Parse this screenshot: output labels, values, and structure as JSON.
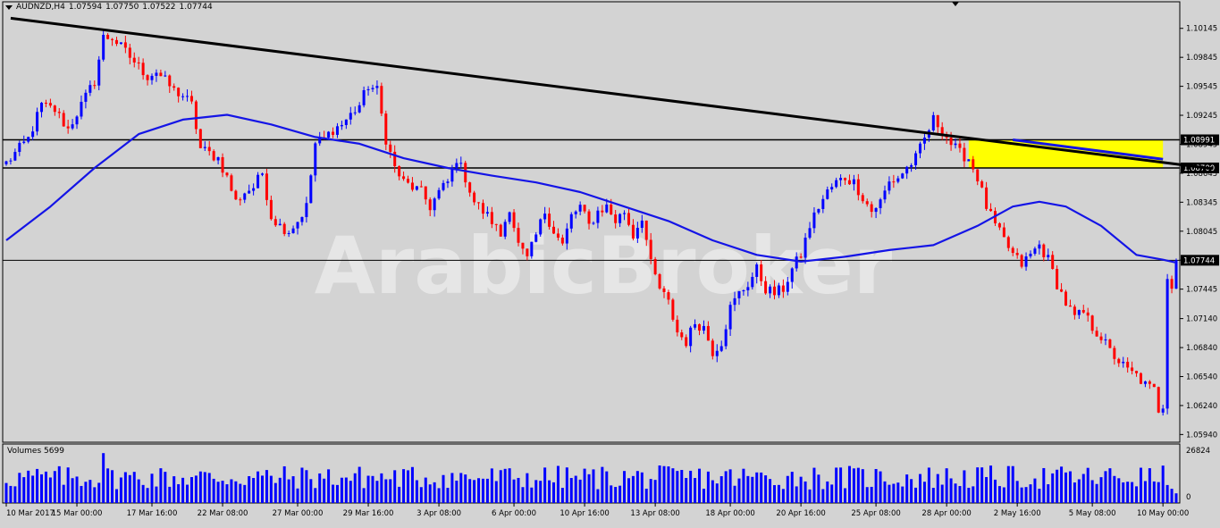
{
  "window": {
    "symbol_label": "AUDNZD,H4",
    "ohlc": [
      "1.07594",
      "1.07750",
      "1.07522",
      "1.07744"
    ]
  },
  "watermark": "ArabicBroker",
  "volumes": {
    "label": "Volumes 5699",
    "max_label": "26824",
    "min_label": "0"
  },
  "colors": {
    "background": "#d3d3d3",
    "bull_candle": "#0000ff",
    "bear_candle": "#ff0000",
    "moving_average": "#1414e6",
    "trendline": "#000000",
    "zone": "#ffff00",
    "volume_bar": "#0000ff"
  },
  "chart_data": {
    "type": "candlestick",
    "symbol": "AUDNZD",
    "timeframe": "H4",
    "ylim": [
      1.0586,
      1.1042
    ],
    "y_ticks": [
      "1.10145",
      "1.09845",
      "1.09545",
      "1.09245",
      "1.08945",
      "1.08645",
      "1.08345",
      "1.08045",
      "1.07745",
      "1.07445",
      "1.07140",
      "1.06840",
      "1.06540",
      "1.06240",
      "1.05940"
    ],
    "x_ticks": [
      "10 Mar 2017",
      "15 Mar 00:00",
      "17 Mar 16:00",
      "22 Mar 08:00",
      "27 Mar 00:00",
      "29 Mar 16:00",
      "3 Apr 08:00",
      "6 Apr 00:00",
      "10 Apr 16:00",
      "13 Apr 08:00",
      "18 Apr 00:00",
      "20 Apr 16:00",
      "25 Apr 08:00",
      "28 Apr 00:00",
      "2 May 16:00",
      "5 May 08:00",
      "10 May 00:00"
    ],
    "price_levels": [
      {
        "label": "1.08991",
        "value": 1.08991
      },
      {
        "label": "1.08700",
        "value": 1.087
      },
      {
        "label": "1.07744",
        "value": 1.07744
      }
    ],
    "trendline": {
      "from": [
        1,
        1.1025
      ],
      "to": [
        262,
        1.0873
      ]
    },
    "zone": {
      "from_index": 218,
      "to_index": 262,
      "top": 1.08991,
      "bottom": 1.087
    },
    "close_anchors": [
      [
        0,
        1.0875
      ],
      [
        2,
        1.0885
      ],
      [
        5,
        1.09
      ],
      [
        8,
        1.0935
      ],
      [
        11,
        1.093
      ],
      [
        14,
        1.091
      ],
      [
        17,
        1.0935
      ],
      [
        20,
        1.096
      ],
      [
        22,
        1.1005
      ],
      [
        24,
        1.1005
      ],
      [
        26,
        1.0995
      ],
      [
        28,
        1.0985
      ],
      [
        30,
        1.0975
      ],
      [
        32,
        1.0965
      ],
      [
        34,
        1.097
      ],
      [
        36,
        1.096
      ],
      [
        38,
        1.095
      ],
      [
        40,
        1.0945
      ],
      [
        42,
        1.0935
      ],
      [
        44,
        1.089
      ],
      [
        46,
        1.0885
      ],
      [
        48,
        1.088
      ],
      [
        50,
        1.086
      ],
      [
        52,
        1.0835
      ],
      [
        54,
        1.0845
      ],
      [
        56,
        1.085
      ],
      [
        58,
        1.0865
      ],
      [
        60,
        1.082
      ],
      [
        62,
        1.081
      ],
      [
        64,
        1.0805
      ],
      [
        66,
        1.0815
      ],
      [
        68,
        1.083
      ],
      [
        70,
        1.0895
      ],
      [
        72,
        1.09
      ],
      [
        74,
        1.091
      ],
      [
        76,
        1.0915
      ],
      [
        78,
        1.0925
      ],
      [
        80,
        1.0935
      ],
      [
        82,
        1.0955
      ],
      [
        84,
        1.095
      ],
      [
        86,
        1.09
      ],
      [
        88,
        1.087
      ],
      [
        90,
        1.0855
      ],
      [
        92,
        1.085
      ],
      [
        94,
        1.0845
      ],
      [
        96,
        1.083
      ],
      [
        98,
        1.0845
      ],
      [
        100,
        1.0855
      ],
      [
        102,
        1.088
      ],
      [
        104,
        1.086
      ],
      [
        106,
        1.0835
      ],
      [
        108,
        1.0825
      ],
      [
        110,
        1.0815
      ],
      [
        112,
        1.08
      ],
      [
        114,
        1.083
      ],
      [
        116,
        1.079
      ],
      [
        118,
        1.0775
      ],
      [
        120,
        1.08
      ],
      [
        122,
        1.0825
      ],
      [
        124,
        1.0805
      ],
      [
        126,
        1.079
      ],
      [
        128,
        1.082
      ],
      [
        130,
        1.083
      ],
      [
        132,
        1.081
      ],
      [
        134,
        1.0825
      ],
      [
        136,
        1.083
      ],
      [
        138,
        1.0815
      ],
      [
        140,
        1.0825
      ],
      [
        142,
        1.08
      ],
      [
        144,
        1.082
      ],
      [
        146,
        1.077
      ],
      [
        148,
        1.0745
      ],
      [
        150,
        1.073
      ],
      [
        152,
        1.07
      ],
      [
        154,
        1.069
      ],
      [
        156,
        1.071
      ],
      [
        158,
        1.0705
      ],
      [
        160,
        1.068
      ],
      [
        162,
        1.069
      ],
      [
        164,
        1.0725
      ],
      [
        166,
        1.074
      ],
      [
        168,
        1.075
      ],
      [
        170,
        1.0765
      ],
      [
        172,
        1.0745
      ],
      [
        174,
        1.074
      ],
      [
        176,
        1.0745
      ],
      [
        178,
        1.0765
      ],
      [
        180,
        1.078
      ],
      [
        182,
        1.081
      ],
      [
        184,
        1.083
      ],
      [
        186,
        1.0845
      ],
      [
        188,
        1.0855
      ],
      [
        190,
        1.086
      ],
      [
        192,
        1.0855
      ],
      [
        194,
        1.084
      ],
      [
        196,
        1.0825
      ],
      [
        198,
        1.0835
      ],
      [
        200,
        1.0855
      ],
      [
        202,
        1.086
      ],
      [
        204,
        1.087
      ],
      [
        206,
        1.088
      ],
      [
        208,
        1.09
      ],
      [
        210,
        1.092
      ],
      [
        212,
        1.091
      ],
      [
        214,
        1.0895
      ],
      [
        216,
        1.0885
      ],
      [
        218,
        1.088
      ],
      [
        220,
        1.086
      ],
      [
        222,
        1.083
      ],
      [
        224,
        1.081
      ],
      [
        226,
        1.0795
      ],
      [
        228,
        1.078
      ],
      [
        230,
        1.077
      ],
      [
        232,
        1.078
      ],
      [
        234,
        1.079
      ],
      [
        236,
        1.0775
      ],
      [
        238,
        1.075
      ],
      [
        240,
        1.073
      ],
      [
        242,
        1.0715
      ],
      [
        244,
        1.072
      ],
      [
        246,
        1.0705
      ],
      [
        248,
        1.0695
      ],
      [
        250,
        1.068
      ],
      [
        252,
        1.067
      ],
      [
        254,
        1.066
      ],
      [
        256,
        1.0655
      ],
      [
        258,
        1.0645
      ],
      [
        260,
        1.064
      ],
      [
        261,
        1.062
      ],
      [
        262,
        1.0625
      ],
      [
        263,
        1.0755
      ],
      [
        264,
        1.0745
      ],
      [
        265,
        1.07744
      ]
    ],
    "ma_points": [
      [
        0,
        1.0795
      ],
      [
        10,
        1.083
      ],
      [
        20,
        1.087
      ],
      [
        30,
        1.0905
      ],
      [
        40,
        1.092
      ],
      [
        50,
        1.0925
      ],
      [
        60,
        1.0915
      ],
      [
        70,
        1.0902
      ],
      [
        80,
        1.0895
      ],
      [
        90,
        1.088
      ],
      [
        100,
        1.087
      ],
      [
        110,
        1.0862
      ],
      [
        120,
        1.0855
      ],
      [
        130,
        1.0845
      ],
      [
        140,
        1.083
      ],
      [
        150,
        1.0815
      ],
      [
        160,
        1.0795
      ],
      [
        170,
        1.078
      ],
      [
        180,
        1.0773
      ],
      [
        190,
        1.0778
      ],
      [
        200,
        1.0785
      ],
      [
        210,
        1.079
      ],
      [
        220,
        1.081
      ],
      [
        228,
        1.083
      ],
      [
        234,
        1.0835
      ],
      [
        240,
        1.083
      ],
      [
        248,
        1.081
      ],
      [
        256,
        1.078
      ],
      [
        262,
        1.0775
      ],
      [
        265,
        1.0772
      ]
    ],
    "n_bars": 266
  }
}
